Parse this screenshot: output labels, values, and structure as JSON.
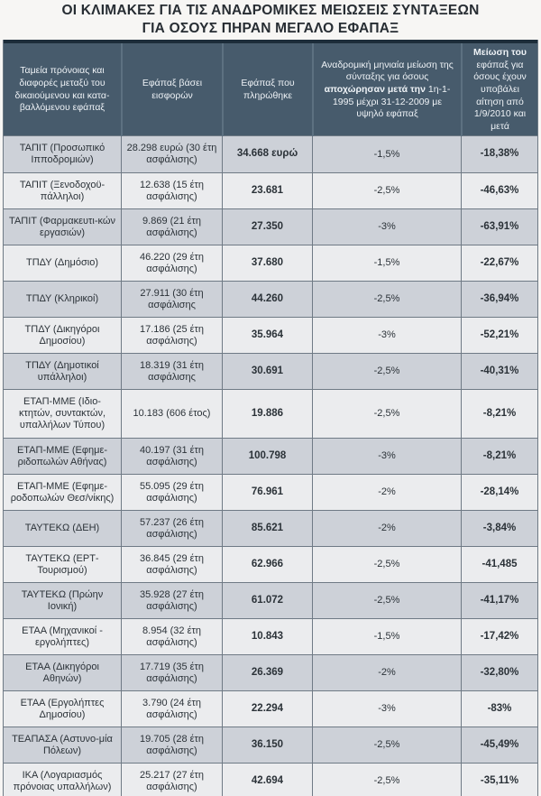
{
  "title": {
    "line1": "ΟΙ ΚΛΙΜΑΚΕΣ ΓΙΑ ΤΙΣ ΑΝΑΔΡΟΜΙΚΕΣ ΜΕΙΩΣΕΙΣ ΣΥΝΤΑΞΕΩΝ",
    "line2": "ΓΙΑ ΟΣΟΥΣ ΠΗΡΑΝ ΜΕΓΑΛΟ ΕΦΑΠΑΞ"
  },
  "colors": {
    "header_bg": "#475b6c",
    "header_text": "#eef2f6",
    "header_top_bar": "#1d2d3a",
    "row_odd_bg": "#cdd1d8",
    "row_even_bg": "#ebecee",
    "border": "#6f7a85",
    "text": "#2b3238",
    "title_text": "#272d33"
  },
  "table": {
    "columns": [
      {
        "id": "fund",
        "parts": [
          {
            "t": "Ταμεία πρόνοιας και διαφορές μεταξύ του δικαιούμενου και κατα-βαλλόμενου εφάπαξ",
            "b": false
          }
        ]
      },
      {
        "id": "contributions",
        "parts": [
          {
            "t": "Εφάπαξ βάσει εισφορών",
            "b": false
          }
        ]
      },
      {
        "id": "paid",
        "parts": [
          {
            "t": "Εφάπαξ που πληρώθηκε",
            "b": false
          }
        ]
      },
      {
        "id": "pension_cut",
        "parts": [
          {
            "t": "Αναδρομική μηνιαία μείωση της σύνταξης για όσους ",
            "b": false
          },
          {
            "t": "αποχώρησαν μετά την",
            "b": true
          },
          {
            "t": " 1η-1-1995 μέχρι 31-12-2009 με υψηλό εφάπαξ",
            "b": false
          }
        ]
      },
      {
        "id": "lumpsum_cut",
        "parts": [
          {
            "t": "Μείωση του",
            "b": true
          },
          {
            "t": " εφάπαξ για όσους έχουν υποβάλει αίτηση από 1/9/2010 και μετά",
            "b": false
          }
        ]
      }
    ],
    "rows": [
      {
        "fund": "ΤΑΠΙΤ (Προσωπικό Ιπποδρομιών)",
        "contributions": "28.298 ευρώ (30 έτη ασφάλισης)",
        "paid": "34.668 ευρώ",
        "pension_cut": "-1,5%",
        "lumpsum_cut": "-18,38%"
      },
      {
        "fund": "ΤΑΠΙΤ (Ξενοδοχοϋ-πάλληλοι)",
        "contributions": "12.638 (15 έτη ασφάλισης)",
        "paid": "23.681",
        "pension_cut": "-2,5%",
        "lumpsum_cut": "-46,63%"
      },
      {
        "fund": "ΤΑΠΙΤ (Φαρμακευτι-κών εργασιών)",
        "contributions": "9.869 (21 έτη ασφάλισης)",
        "paid": "27.350",
        "pension_cut": "-3%",
        "lumpsum_cut": "-63,91%"
      },
      {
        "fund": "ΤΠΔΥ (Δημόσιο)",
        "contributions": "46.220 (29 έτη ασφάλισης)",
        "paid": "37.680",
        "pension_cut": "-1,5%",
        "lumpsum_cut": "-22,67%"
      },
      {
        "fund": "ΤΠΔΥ (Κληρικοί)",
        "contributions": "27.911 (30 έτη ασφάλισης",
        "paid": "44.260",
        "pension_cut": "-2,5%",
        "lumpsum_cut": "-36,94%"
      },
      {
        "fund": "ΤΠΔΥ (Δικηγόροι Δημοσίου)",
        "contributions": "17.186 (25 έτη ασφάλισης)",
        "paid": "35.964",
        "pension_cut": "-3%",
        "lumpsum_cut": "-52,21%"
      },
      {
        "fund": "ΤΠΔΥ (Δημοτικοί υπάλληλοι)",
        "contributions": "18.319 (31 έτη ασφάλισης",
        "paid": "30.691",
        "pension_cut": "-2,5%",
        "lumpsum_cut": "-40,31%"
      },
      {
        "fund": "ΕΤΑΠ-ΜΜΕ (Ιδιο-κτητών, συντακτών, υπαλλήλων Τύπου)",
        "contributions": "10.183 (606 έτος)",
        "paid": "19.886",
        "pension_cut": "-2,5%",
        "lumpsum_cut": "-8,21%"
      },
      {
        "fund": "ΕΤΑΠ-ΜΜΕ (Εφημε-ριδοπωλών Αθήνας)",
        "contributions": "40.197 (31 έτη ασφάλισης)",
        "paid": "100.798",
        "pension_cut": "-3%",
        "lumpsum_cut": "-8,21%"
      },
      {
        "fund": "ΕΤΑΠ-ΜΜΕ (Εφημε-ροδοπωλών Θεσ/νίκης)",
        "contributions": "55.095 (29 έτη ασφάλισης)",
        "paid": "76.961",
        "pension_cut": "-2%",
        "lumpsum_cut": "-28,14%"
      },
      {
        "fund": "ΤΑΥΤΕΚΩ (ΔΕΗ)",
        "contributions": "57.237 (26 έτη ασφάλισης)",
        "paid": "85.621",
        "pension_cut": "-2%",
        "lumpsum_cut": "-3,84%"
      },
      {
        "fund": "ΤΑΥΤΕΚΩ (ΕΡΤ-Τουρισμού)",
        "contributions": "36.845 (29 έτη ασφάλισης)",
        "paid": "62.966",
        "pension_cut": "-2,5%",
        "lumpsum_cut": "-41,485"
      },
      {
        "fund": "ΤΑΥΤΕΚΩ (Πρώην Ιονική)",
        "contributions": "35.928 (27 έτη ασφάλισης)",
        "paid": "61.072",
        "pension_cut": "-2,5%",
        "lumpsum_cut": "-41,17%"
      },
      {
        "fund": "ΕΤΑΑ (Μηχανικοί - εργολήπτες)",
        "contributions": "8.954 (32 έτη ασφάλισης)",
        "paid": "10.843",
        "pension_cut": "-1,5%",
        "lumpsum_cut": "-17,42%"
      },
      {
        "fund": "ΕΤΑΑ (Δικηγόροι Αθηνών)",
        "contributions": "17.719 (35 έτη ασφάλισης)",
        "paid": "26.369",
        "pension_cut": "-2%",
        "lumpsum_cut": "-32,80%"
      },
      {
        "fund": "ΕΤΑΑ (Εργολήπτες Δημοσίου)",
        "contributions": "3.790 (24 έτη ασφάλισης)",
        "paid": "22.294",
        "pension_cut": "-3%",
        "lumpsum_cut": "-83%"
      },
      {
        "fund": "ΤΕΑΠΑΣΑ (Αστυνο-μία Πόλεων)",
        "contributions": "19.705 (28 έτη ασφάλισης)",
        "paid": "36.150",
        "pension_cut": "-2,5%",
        "lumpsum_cut": "-45,49%"
      },
      {
        "fund": "ΙΚΑ (Λογαριασμός πρόνοιας υπαλλήλων)",
        "contributions": "25.217 (27 έτη ασφάλισης)",
        "paid": "42.694",
        "pension_cut": "-2,5%",
        "lumpsum_cut": "-35,11%"
      }
    ]
  }
}
